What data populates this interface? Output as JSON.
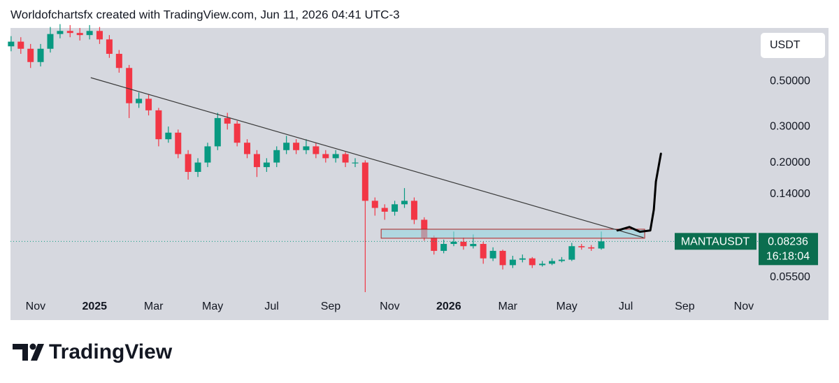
{
  "chart_data": {
    "type": "candlestick",
    "title": "Worldofchartsfx created with TradingView.com, Jun 11, 2026 04:41 UTC-3",
    "brand": "TradingView",
    "currency": "USDT",
    "log_scale": true,
    "up_color": "#089981",
    "down_color": "#f23645",
    "x": [
      -0.83,
      -0.5,
      -0.17,
      0.17,
      0.5,
      0.83,
      1.17,
      1.5,
      1.83,
      2.17,
      2.5,
      2.83,
      3.17,
      3.5,
      3.83,
      4.17,
      4.5,
      4.83,
      5.17,
      5.5,
      5.83,
      6.17,
      6.5,
      6.83,
      7.17,
      7.5,
      7.83,
      8.17,
      8.5,
      8.83,
      9.17,
      9.5,
      9.83,
      10.17,
      10.5,
      10.83,
      11.17,
      11.5,
      11.83,
      12.17,
      12.5,
      12.83,
      13.17,
      13.5,
      13.83,
      14.17,
      14.5,
      14.83,
      15.17,
      15.5,
      15.83,
      16.17,
      16.5,
      16.83,
      17.17,
      17.5,
      17.83,
      18.17,
      18.5,
      18.83,
      19.17
    ],
    "series": [
      {
        "name": "MANTAUSDT",
        "open": [
          0.74,
          0.78,
          0.72,
          0.62,
          0.72,
          0.85,
          0.88,
          0.86,
          0.84,
          0.88,
          0.8,
          0.68,
          0.58,
          0.39,
          0.41,
          0.36,
          0.26,
          0.28,
          0.22,
          0.18,
          0.2,
          0.24,
          0.33,
          0.31,
          0.25,
          0.22,
          0.19,
          0.2,
          0.23,
          0.25,
          0.23,
          0.24,
          0.22,
          0.21,
          0.22,
          0.2,
          0.2,
          0.13,
          0.12,
          0.115,
          0.125,
          0.13,
          0.105,
          0.086,
          0.074,
          0.08,
          0.082,
          0.078,
          0.08,
          0.068,
          0.074,
          0.063,
          0.067,
          0.068,
          0.063,
          0.064,
          0.066,
          0.067,
          0.078,
          0.077,
          0.076
        ],
        "high": [
          0.83,
          0.82,
          0.76,
          0.76,
          0.92,
          0.95,
          0.94,
          0.91,
          0.94,
          0.92,
          0.84,
          0.71,
          0.6,
          0.44,
          0.43,
          0.37,
          0.3,
          0.29,
          0.23,
          0.21,
          0.25,
          0.35,
          0.35,
          0.32,
          0.26,
          0.23,
          0.21,
          0.24,
          0.27,
          0.26,
          0.26,
          0.25,
          0.23,
          0.23,
          0.225,
          0.21,
          0.205,
          0.135,
          0.125,
          0.13,
          0.15,
          0.135,
          0.108,
          0.088,
          0.084,
          0.092,
          0.086,
          0.089,
          0.082,
          0.077,
          0.075,
          0.07,
          0.071,
          0.069,
          0.066,
          0.068,
          0.069,
          0.081,
          0.08,
          0.079,
          0.092
        ],
        "low": [
          0.7,
          0.68,
          0.58,
          0.59,
          0.69,
          0.81,
          0.82,
          0.79,
          0.8,
          0.76,
          0.65,
          0.55,
          0.33,
          0.37,
          0.34,
          0.24,
          0.25,
          0.21,
          0.165,
          0.17,
          0.19,
          0.23,
          0.29,
          0.24,
          0.21,
          0.17,
          0.18,
          0.19,
          0.22,
          0.22,
          0.22,
          0.21,
          0.2,
          0.2,
          0.19,
          0.19,
          0.0465,
          0.11,
          0.105,
          0.11,
          0.12,
          0.1,
          0.083,
          0.071,
          0.072,
          0.078,
          0.075,
          0.076,
          0.064,
          0.066,
          0.06,
          0.061,
          0.065,
          0.061,
          0.062,
          0.063,
          0.065,
          0.066,
          0.075,
          0.074,
          0.075
        ],
        "close": [
          0.78,
          0.72,
          0.62,
          0.72,
          0.85,
          0.88,
          0.86,
          0.84,
          0.88,
          0.8,
          0.68,
          0.58,
          0.39,
          0.41,
          0.36,
          0.26,
          0.28,
          0.22,
          0.18,
          0.2,
          0.24,
          0.33,
          0.31,
          0.25,
          0.22,
          0.19,
          0.2,
          0.23,
          0.25,
          0.23,
          0.24,
          0.22,
          0.21,
          0.22,
          0.2,
          0.2,
          0.13,
          0.12,
          0.115,
          0.125,
          0.13,
          0.105,
          0.086,
          0.074,
          0.08,
          0.082,
          0.078,
          0.08,
          0.068,
          0.074,
          0.063,
          0.067,
          0.068,
          0.063,
          0.064,
          0.066,
          0.067,
          0.078,
          0.077,
          0.076,
          0.08236
        ]
      }
    ],
    "last_price": 0.08236,
    "last_price_color": "#0b6e4f",
    "countdown": "16:18:04",
    "xlim": [
      -0.85,
      24.5
    ],
    "xticks": [
      {
        "value": 0,
        "label": "Nov"
      },
      {
        "value": 2,
        "label": "2025"
      },
      {
        "value": 4,
        "label": "Mar"
      },
      {
        "value": 6,
        "label": "May"
      },
      {
        "value": 8,
        "label": "Jul"
      },
      {
        "value": 10,
        "label": "Sep"
      },
      {
        "value": 12,
        "label": "Nov"
      },
      {
        "value": 14,
        "label": "2026"
      },
      {
        "value": 16,
        "label": "Mar"
      },
      {
        "value": 18,
        "label": "May"
      },
      {
        "value": 20,
        "label": "Jul"
      },
      {
        "value": 22,
        "label": "Sep"
      },
      {
        "value": 24,
        "label": "Nov"
      }
    ],
    "ylim": [
      0.044,
      0.91
    ],
    "yticks": [
      {
        "value": 0.5,
        "label": "0.50000"
      },
      {
        "value": 0.3,
        "label": "0.30000"
      },
      {
        "value": 0.2,
        "label": "0.20000"
      },
      {
        "value": 0.14,
        "label": "0.14000"
      },
      {
        "value": 0.055,
        "label": "0.05500"
      }
    ],
    "trendline": {
      "x": [
        1.87,
        20.6
      ],
      "y": [
        0.52,
        0.0859
      ]
    },
    "zone": {
      "x": [
        11.71,
        20.64
      ],
      "y": [
        0.0944,
        0.0853
      ]
    },
    "projection": {
      "x": [
        19.72,
        20.12,
        20.48,
        20.83,
        20.95,
        21.02,
        21.19
      ],
      "y": [
        0.0931,
        0.0968,
        0.0917,
        0.0931,
        0.1178,
        0.1614,
        0.221
      ]
    }
  }
}
